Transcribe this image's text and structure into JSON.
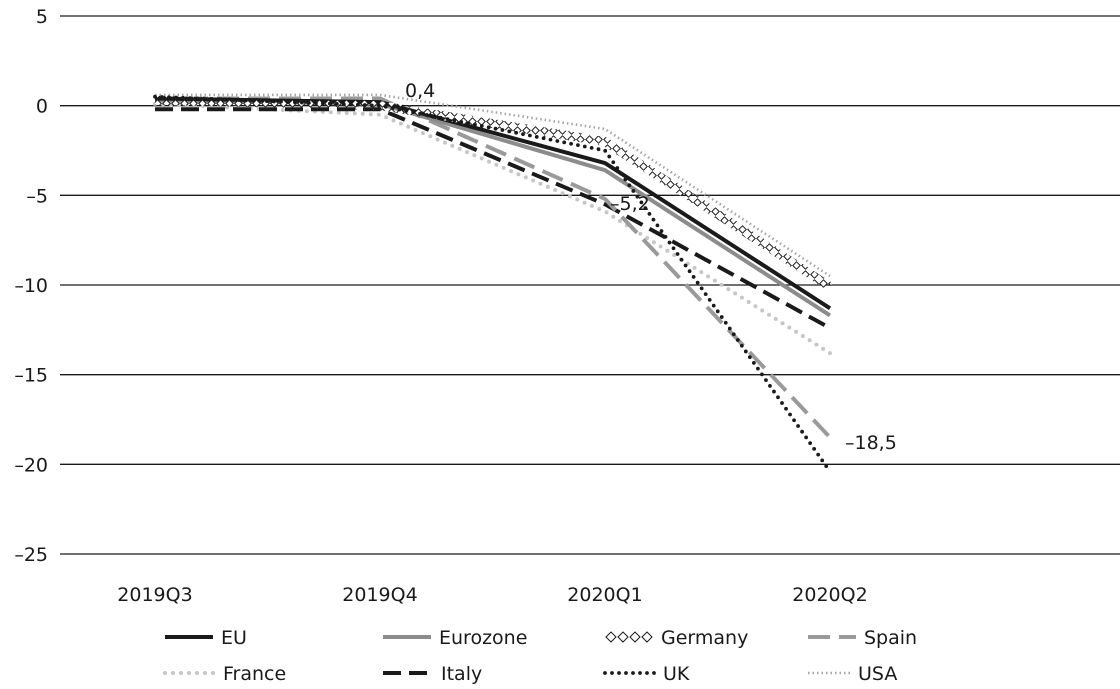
{
  "chart_data": {
    "type": "line",
    "categories": [
      "2019Q3",
      "2019Q4",
      "2020Q1",
      "2020Q2"
    ],
    "ylim": [
      -25,
      5
    ],
    "yticks": [
      5,
      0,
      -5,
      -10,
      -15,
      -20,
      -25
    ],
    "ytick_labels": [
      "5",
      "0",
      "–5",
      "–10",
      "–15",
      "–20",
      "–25"
    ],
    "grid": true,
    "legend_position": "bottom",
    "series": [
      {
        "name": "EU",
        "values": [
          0.4,
          0.2,
          -3.2,
          -11.3
        ],
        "color": "#1a1a1a",
        "style": "solid-thick"
      },
      {
        "name": "Eurozone",
        "values": [
          0.3,
          0.1,
          -3.6,
          -11.7
        ],
        "color": "#8c8c8c",
        "style": "solid"
      },
      {
        "name": "Germany",
        "values": [
          0.3,
          0.0,
          -2.0,
          -10.1
        ],
        "color": "#1a1a1a",
        "style": "diamond"
      },
      {
        "name": "Spain",
        "values": [
          0.4,
          0.4,
          -5.2,
          -18.5
        ],
        "color": "#9a9a9a",
        "style": "long-dash"
      },
      {
        "name": "France",
        "values": [
          0.1,
          -0.5,
          -5.9,
          -13.8
        ],
        "color": "#c6c6c6",
        "style": "dot-light"
      },
      {
        "name": "Italy",
        "values": [
          -0.2,
          -0.2,
          -5.5,
          -12.4
        ],
        "color": "#1a1a1a",
        "style": "dash-thick"
      },
      {
        "name": "UK",
        "values": [
          0.5,
          0.0,
          -2.5,
          -20.4
        ],
        "color": "#1a1a1a",
        "style": "dot-dark"
      },
      {
        "name": "USA",
        "values": [
          0.6,
          0.6,
          -1.3,
          -9.5
        ],
        "color": "#a6a6a6",
        "style": "fine-dot"
      }
    ],
    "annotations": [
      {
        "text": "0,4",
        "x": "2019Q4",
        "y": 0.4
      },
      {
        "text": "–5,2",
        "x": "2020Q1",
        "y": -5.2
      },
      {
        "text": "–18,5",
        "x": "2020Q2",
        "y": -18.5
      }
    ]
  }
}
